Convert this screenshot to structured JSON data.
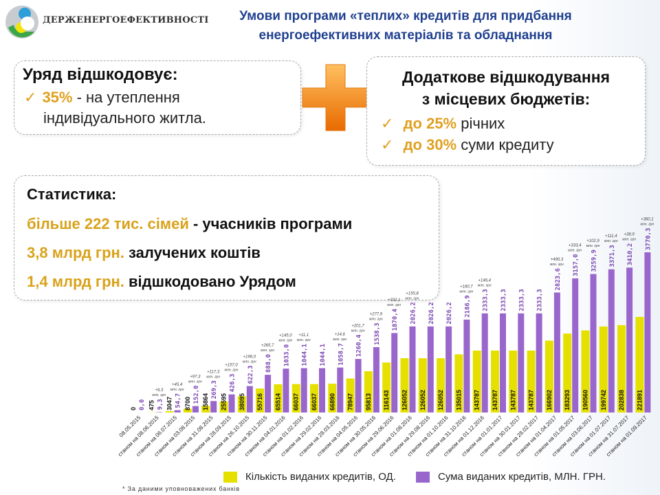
{
  "header": {
    "org_name": "ДЕРЖЕНЕРГОЕФЕКТИВНОСТІ",
    "title_line1": "Умови програми «теплих» кредитів для придбання",
    "title_line2": "енергоефективних матеріалів та обладнання"
  },
  "government_box": {
    "heading": "Уряд відшкодовує:",
    "check": "✓",
    "percent": "35%",
    "text1": " - на утеплення",
    "text2": "індивідуального житла."
  },
  "plus_icon": "plus-icon",
  "local_box": {
    "heading1": "Додаткове відшкодування",
    "heading2": "з місцевих бюджетів:",
    "items": [
      {
        "check": "✓",
        "value": "до 25%",
        "text": " річних"
      },
      {
        "check": "✓",
        "value": "до 30%",
        "text": " суми кредиту"
      }
    ]
  },
  "statistics": {
    "heading": "Статистика:",
    "rows": [
      {
        "highlight": "більше 222 тис. сімей",
        "text": " - учасників програми"
      },
      {
        "highlight": "3,8 млрд грн.",
        "text": " залучених коштів"
      },
      {
        "highlight": "1,4 млрд грн.",
        "text": " відшкодовано Урядом"
      }
    ]
  },
  "colors": {
    "accent": "#d9a21b",
    "title": "#1f3f8f",
    "yellow_series": "#e6e000",
    "purple_series": "#9966cc"
  },
  "chart_data": {
    "type": "bar",
    "categories": [
      "08.05.2015",
      "станом на 08.06.2015",
      "станом на 06.07.2015",
      "станом на 03.08.2015",
      "станом на 31.08.2015",
      "станом на 28.09.2015",
      "станом на 26.10.2015",
      "станом на 30.11.2015",
      "станом на 04.01.2016",
      "станом на 01.02.2016",
      "станом на 29.02.2016",
      "станом на 28.03.2016",
      "станом на 04.05.2016",
      "станом на 30.05.2016",
      "станом на 29.06.2016",
      "станом на 01.08.2016",
      "станом на 29.08.2016",
      "станом на 01.10.2016",
      "станом на 31.10.2016",
      "станом на 01.12.2016",
      "станом на 01.01.2017",
      "станом на 30.01.2017",
      "станом на 28.02.2017",
      "станом на 01.04.2017",
      "станом на 01.05.2017",
      "станом на 03.06.2017",
      "станом на 01.07.2017",
      "станом на 31.07.2017",
      "станом на 01.09.2017"
    ],
    "series": [
      {
        "name": "Кількість виданих кредитів, ОД.",
        "color": "#e6e000",
        "values": [
          0,
          475,
          3047,
          8700,
          15864,
          25595,
          38095,
          55716,
          65514,
          66037,
          66037,
          66890,
          78947,
          95813,
          116143,
          126052,
          126052,
          126052,
          135015,
          143787,
          143787,
          143787,
          143787,
          166902,
          183293,
          190560,
          199742,
          202838,
          221891
        ],
        "labels": [
          "0",
          "475",
          "3047",
          "8700",
          "15864",
          "25595",
          "38095",
          "55716",
          "65514",
          "66037",
          "66037",
          "66890",
          "78947",
          "95813",
          "116143",
          "126052",
          "126052",
          "126052",
          "135015",
          "143787",
          "143787",
          "143787",
          "143787",
          "166902",
          "183293",
          "190560",
          "199742",
          "202838",
          "221891"
        ]
      },
      {
        "name": "Сума виданих кредитів, МЛН. ГРН.",
        "color": "#9966cc",
        "values": [
          0,
          9.3,
          54.7,
          152.0,
          269.3,
          426.3,
          622.3,
          888.0,
          1033.0,
          1044.1,
          1044.1,
          1058.7,
          1260.4,
          1538.3,
          1870.4,
          2026.2,
          2026.2,
          2026.2,
          2186.9,
          2333.3,
          2333.3,
          2333.3,
          2333.3,
          2823.6,
          3157.0,
          3259.9,
          3371.3,
          3410.2,
          3770.3
        ],
        "labels": [
          "0,0",
          "9,3",
          "54,7",
          "152,0",
          "269,3",
          "426,3",
          "622,3",
          "888,0",
          "1033,0",
          "1044,1",
          "1044,1",
          "1058,7",
          "1260,4",
          "1538,3",
          "1870,4",
          "2026,2",
          "2026,2",
          "2026,2",
          "2186,9",
          "2333,3",
          "2333,3",
          "2333,3",
          "2333,3",
          "2823,6",
          "3157,0",
          "3259,9",
          "3371,3",
          "3410,2",
          "3770,3"
        ]
      }
    ],
    "annotations": [
      "",
      "+9,3",
      "+45,4",
      "+97,3",
      "+117,3",
      "+157,0",
      "+196,0",
      "+265,7",
      "+145,0",
      "+11,1",
      "",
      "+14,6",
      "+201,7",
      "+277,9",
      "+332,1",
      "+155,8",
      "",
      "",
      "+160,7",
      "+146,4",
      "",
      "",
      "",
      "+490,3",
      "+333,4",
      "+102,9",
      "+111,4",
      "+38,9",
      "+360,1"
    ],
    "annotation_unit": "млн. грн",
    "legend_position": "bottom",
    "grid": false,
    "footnote": "* За даними уповноважених банків"
  }
}
